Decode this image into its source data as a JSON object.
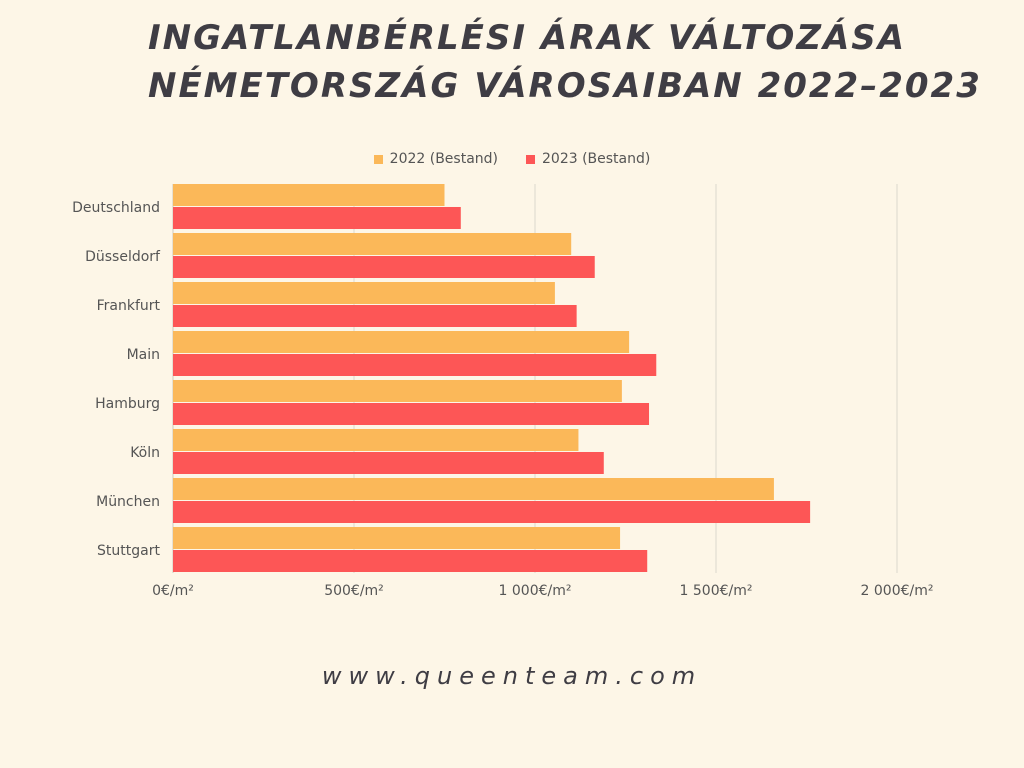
{
  "title": {
    "line1": "INGATLANBÉRLÉSI ÁRAK VÁLTOZÁSA",
    "line2": "NÉMETORSZÁG VÁROSAIBAN 2022–2023"
  },
  "footer": {
    "url": "www.queenteam.com"
  },
  "colors": {
    "background": "#fdf6e7",
    "series2022": "#fbb859",
    "series2023": "#fd5656",
    "grid": "#dcd8cc"
  },
  "chart_data": {
    "type": "bar",
    "orientation": "horizontal",
    "title": "INGATLANBÉRLÉSI ÁRAK VÁLTOZÁSA NÉMETORSZÁG VÁROSAIBAN 2022–2023",
    "categories": [
      "Deutschland",
      "Düsseldorf",
      "Frankfurt",
      "Main",
      "Hamburg",
      "Köln",
      "München",
      "Stuttgart"
    ],
    "series": [
      {
        "name": "2022 (Bestand)",
        "color": "#fbb859",
        "values": [
          750,
          1100,
          1055,
          1260,
          1240,
          1120,
          1660,
          1235
        ]
      },
      {
        "name": "2023 (Bestand)",
        "color": "#fd5656",
        "values": [
          795,
          1165,
          1115,
          1335,
          1315,
          1190,
          1760,
          1310
        ]
      }
    ],
    "xlim": [
      0,
      2000
    ],
    "xticks": [
      0,
      500,
      1000,
      1500,
      2000
    ],
    "xtick_labels": [
      "0€/m²",
      "500€/m²",
      "1 000€/m²",
      "1 500€/m²",
      "2 000€/m²"
    ],
    "grid": true,
    "legend_position": "top-center"
  }
}
